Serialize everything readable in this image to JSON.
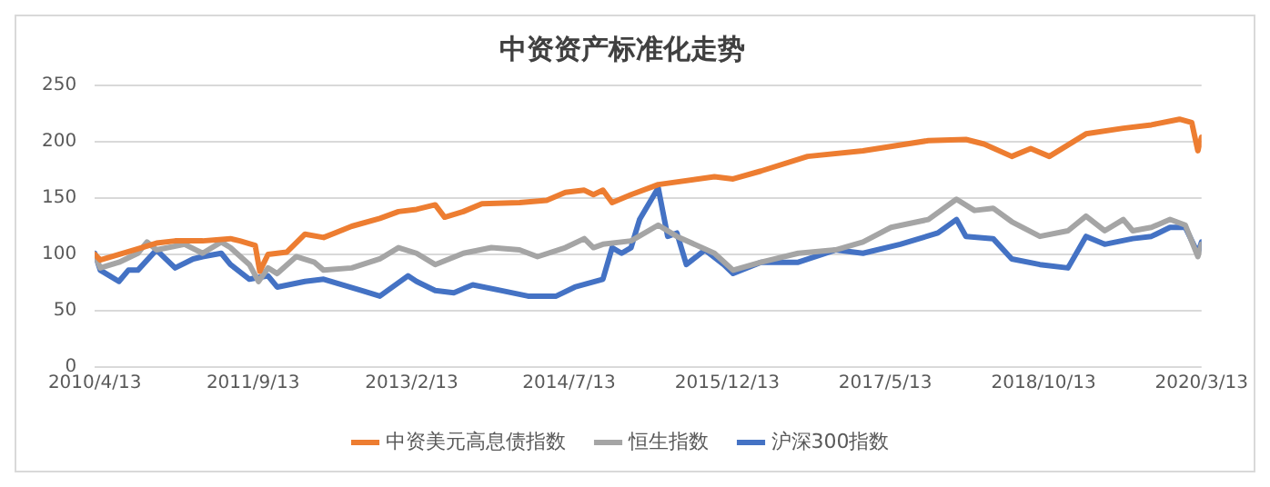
{
  "chart_data": {
    "type": "line",
    "title": "中资资产标准化走势",
    "xlim": [
      "2010-04-13",
      "2020-03-13"
    ],
    "xticks": [
      {
        "value": "2010-04-13",
        "label": "2010/4/13"
      },
      {
        "value": "2011-09-13",
        "label": "2011/9/13"
      },
      {
        "value": "2013-02-13",
        "label": "2013/2/13"
      },
      {
        "value": "2014-07-13",
        "label": "2014/7/13"
      },
      {
        "value": "2015-12-13",
        "label": "2015/12/13"
      },
      {
        "value": "2017-05-13",
        "label": "2017/5/13"
      },
      {
        "value": "2018-10-13",
        "label": "2018/10/13"
      },
      {
        "value": "2020-03-13",
        "label": "2020/3/13"
      }
    ],
    "ylim": [
      0,
      250
    ],
    "yticks": [
      0,
      50,
      100,
      150,
      200,
      250
    ],
    "grid": "y",
    "legend": "bottom",
    "marker": "none",
    "line_style": "solid",
    "series": [
      {
        "name": "中资美元高息债指数",
        "color": "#ed7d31",
        "x": [
          "2010-04-13",
          "2010-05",
          "2010-09",
          "2010-11",
          "2011-01",
          "2011-04",
          "2011-07",
          "2011-08",
          "2011-09-20",
          "2011-10-05",
          "2011-11",
          "2012-01",
          "2012-03",
          "2012-05",
          "2012-08",
          "2012-11",
          "2013-01",
          "2013-03",
          "2013-05",
          "2013-06",
          "2013-08",
          "2013-10",
          "2014-02",
          "2014-05",
          "2014-07",
          "2014-09",
          "2014-10",
          "2014-11",
          "2014-12",
          "2015-02",
          "2015-05",
          "2015-11",
          "2016-01",
          "2016-04",
          "2016-09",
          "2017-03",
          "2017-10",
          "2018-02",
          "2018-04",
          "2018-07",
          "2018-09",
          "2018-11",
          "2019-03",
          "2019-07",
          "2019-10",
          "2020-01",
          "2020-02-10",
          "2020-03-01",
          "2020-03-13"
        ],
        "values": [
          100,
          95,
          105,
          110,
          112,
          112,
          114,
          112,
          108,
          85,
          100,
          102,
          118,
          115,
          125,
          132,
          138,
          140,
          144,
          133,
          138,
          145,
          146,
          148,
          155,
          157,
          153,
          157,
          146,
          153,
          162,
          169,
          167,
          174,
          187,
          192,
          201,
          202,
          198,
          187,
          194,
          187,
          207,
          212,
          215,
          220,
          217,
          192,
          204
        ]
      },
      {
        "name": "恒生指数",
        "color": "#a5a5a5",
        "x": [
          "2010-04-13",
          "2010-05",
          "2010-07",
          "2010-09",
          "2010-10",
          "2010-11",
          "2011-02",
          "2011-04",
          "2011-06",
          "2011-07",
          "2011-09",
          "2011-10",
          "2011-11",
          "2011-12",
          "2012-02",
          "2012-04",
          "2012-05",
          "2012-08",
          "2012-11",
          "2013-01",
          "2013-03",
          "2013-05",
          "2013-08",
          "2013-11",
          "2014-02",
          "2014-04",
          "2014-07",
          "2014-09",
          "2014-10",
          "2014-11",
          "2015-02",
          "2015-05",
          "2015-07",
          "2015-11",
          "2016-01",
          "2016-04",
          "2016-08",
          "2016-12",
          "2017-03",
          "2017-06",
          "2017-10",
          "2018-01",
          "2018-03",
          "2018-05",
          "2018-07",
          "2018-10",
          "2019-01",
          "2019-03",
          "2019-05",
          "2019-07",
          "2019-08",
          "2019-10",
          "2019-12",
          "2020-01-20",
          "2020-03-01",
          "2020-03-13"
        ],
        "values": [
          100,
          88,
          93,
          101,
          111,
          104,
          109,
          101,
          111,
          106,
          91,
          76,
          88,
          83,
          98,
          93,
          86,
          88,
          96,
          106,
          101,
          91,
          101,
          106,
          104,
          98,
          106,
          114,
          106,
          109,
          112,
          126,
          116,
          101,
          86,
          93,
          101,
          104,
          111,
          124,
          131,
          149,
          139,
          141,
          129,
          116,
          121,
          134,
          121,
          131,
          121,
          124,
          131,
          126,
          98,
          109
        ]
      },
      {
        "name": "沪深300指数",
        "color": "#4472c4",
        "x": [
          "2010-04-13",
          "2010-05",
          "2010-06",
          "2010-07",
          "2010-08",
          "2010-09",
          "2010-11",
          "2010-12",
          "2011-01",
          "2011-03",
          "2011-04",
          "2011-06",
          "2011-07",
          "2011-09",
          "2011-11",
          "2011-12",
          "2012-03",
          "2012-05",
          "2012-09",
          "2012-11",
          "2013-02",
          "2013-03",
          "2013-05",
          "2013-07",
          "2013-09",
          "2013-12",
          "2014-03",
          "2014-06",
          "2014-08",
          "2014-11",
          "2014-12",
          "2015-01",
          "2015-02",
          "2015-03",
          "2015-05",
          "2015-06",
          "2015-07",
          "2015-08",
          "2015-10",
          "2015-12",
          "2016-01",
          "2016-04",
          "2016-08",
          "2016-12",
          "2017-03",
          "2017-07",
          "2017-11",
          "2018-01",
          "2018-02",
          "2018-05",
          "2018-07",
          "2018-10",
          "2019-01",
          "2019-03",
          "2019-05",
          "2019-08",
          "2019-10",
          "2019-12",
          "2020-01-20",
          "2020-03-01",
          "2020-03-13"
        ],
        "values": [
          101,
          86,
          81,
          76,
          86,
          86,
          104,
          96,
          88,
          96,
          98,
          101,
          91,
          78,
          81,
          71,
          76,
          78,
          68,
          63,
          81,
          76,
          68,
          66,
          73,
          68,
          63,
          63,
          71,
          78,
          106,
          101,
          106,
          131,
          159,
          116,
          119,
          91,
          104,
          91,
          83,
          93,
          93,
          104,
          101,
          109,
          119,
          131,
          116,
          114,
          96,
          91,
          88,
          116,
          109,
          114,
          116,
          124,
          124,
          101,
          111
        ]
      }
    ]
  }
}
